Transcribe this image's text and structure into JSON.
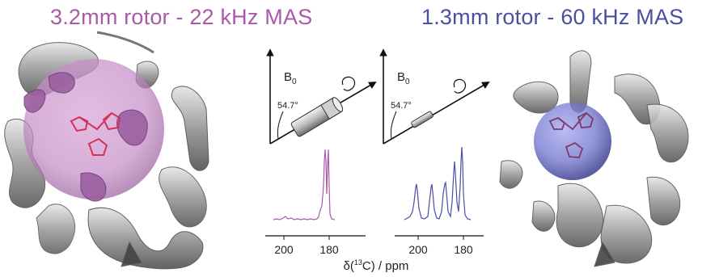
{
  "left_panel": {
    "title": "3.2mm rotor - 22 kHz MAS",
    "accent_color": "#a95aa8",
    "rotor": {
      "field_label": "B",
      "field_subscript": "0",
      "angle_label": "54.7°"
    },
    "spectrum": {
      "tick_labels": [
        "200",
        "180"
      ]
    }
  },
  "right_panel": {
    "title": "1.3mm rotor - 60 kHz MAS",
    "accent_color": "#4b4f9f",
    "rotor": {
      "field_label": "B",
      "field_subscript": "0",
      "angle_label": "54.7°"
    },
    "spectrum": {
      "tick_labels": [
        "200",
        "180"
      ]
    }
  },
  "shared_axis": {
    "label_prefix": "δ(",
    "label_sup": "13",
    "label_suffix": "C) / ppm"
  },
  "icons": [
    "protein-ribbon-icon",
    "rotation-arrow-icon",
    "rotor-cylinder-icon"
  ]
}
